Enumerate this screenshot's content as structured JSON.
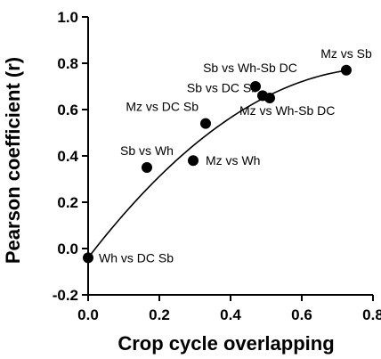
{
  "chart_data": {
    "type": "scatter",
    "title": "",
    "xlabel": "Crop cycle overlapping",
    "ylabel": "Pearson coefficient (r)",
    "xlim": [
      0,
      0.8
    ],
    "ylim": [
      -0.2,
      1.0
    ],
    "xticks": [
      "0.0",
      "0.2",
      "0.4",
      "0.6",
      "0.8"
    ],
    "yticks": [
      "-0.2",
      "0.0",
      "0.2",
      "0.4",
      "0.6",
      "0.8",
      "1.0"
    ],
    "grid": false,
    "legend": "none",
    "points": [
      {
        "label": "Wh vs DC Sb",
        "x": 0.0,
        "y": -0.04
      },
      {
        "label": "Sb vs Wh",
        "x": 0.165,
        "y": 0.35
      },
      {
        "label": "Mz vs Wh",
        "x": 0.295,
        "y": 0.38
      },
      {
        "label": "Mz vs DC Sb",
        "x": 0.33,
        "y": 0.54
      },
      {
        "label": "Sb vs Wh-Sb DC",
        "x": 0.47,
        "y": 0.7
      },
      {
        "label": "Sb vs DC Sb",
        "x": 0.49,
        "y": 0.66
      },
      {
        "label": "Mz vs Wh-Sb DC",
        "x": 0.51,
        "y": 0.65
      },
      {
        "label": "Mz vs Sb",
        "x": 0.725,
        "y": 0.77
      }
    ],
    "fit_curve": {
      "type": "polynomial",
      "x_range": [
        0.0,
        0.725
      ],
      "coefficients": [
        -0.04,
        2.0,
        -1.22
      ]
    },
    "colors": {
      "marker": "#000000",
      "curve": "#000000",
      "axis": "#000000"
    }
  }
}
